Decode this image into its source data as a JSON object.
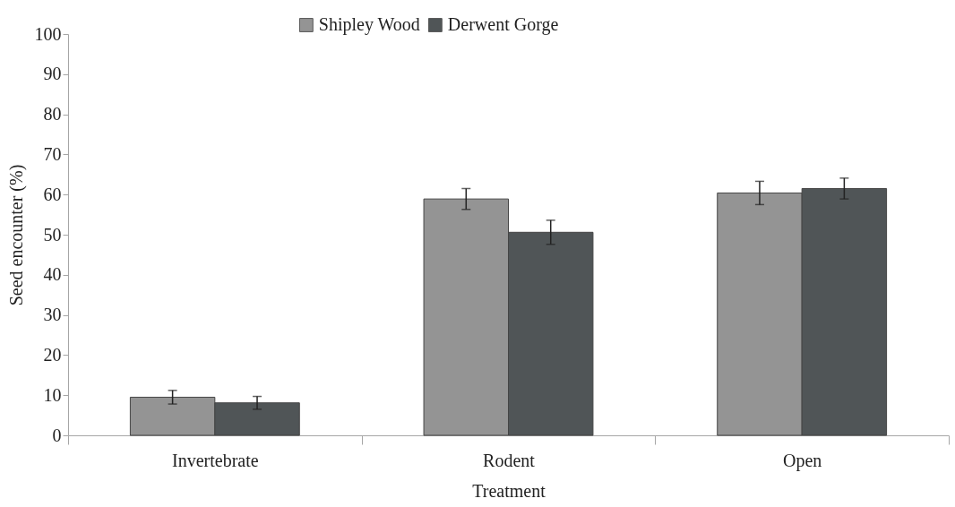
{
  "chart_data": {
    "type": "bar",
    "xlabel": "Treatment",
    "ylabel": "Seed encounter (%)",
    "categories": [
      "Invertebrate",
      "Rodent",
      "Open"
    ],
    "series": [
      {
        "name": "Shipley Wood",
        "color": "#949494",
        "values": [
          9.5,
          58.9,
          60.4
        ],
        "errors": [
          1.7,
          2.6,
          2.9
        ]
      },
      {
        "name": "Derwent Gorge",
        "color": "#505557",
        "values": [
          8.1,
          50.6,
          61.5
        ],
        "errors": [
          1.6,
          3.0,
          2.6
        ]
      }
    ],
    "ylim": [
      0,
      100
    ],
    "yticks": [
      0,
      10,
      20,
      30,
      40,
      50,
      60,
      70,
      80,
      90,
      100
    ],
    "legend": "top",
    "grid": false
  }
}
